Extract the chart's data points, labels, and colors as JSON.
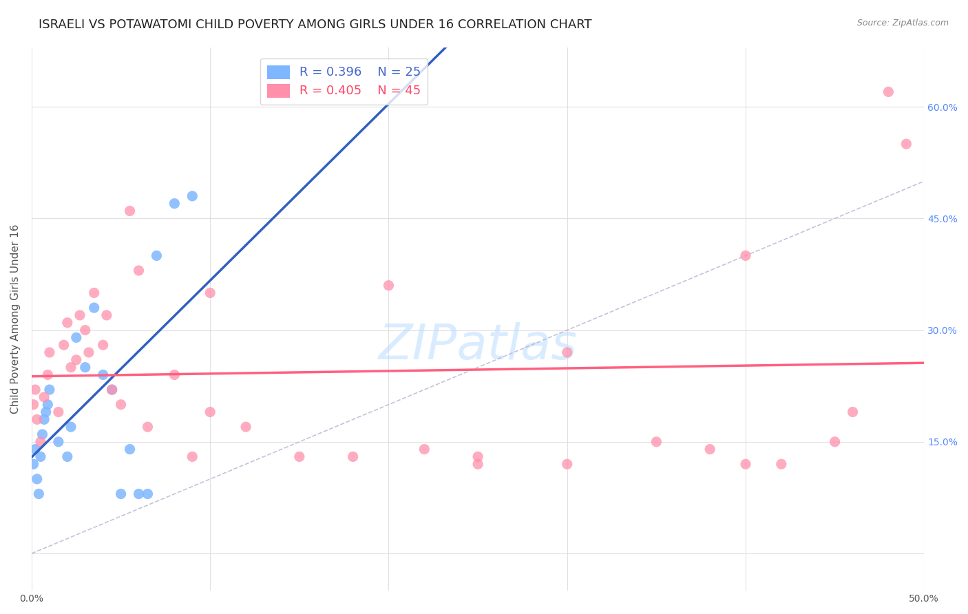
{
  "title": "ISRAELI VS POTAWATOMI CHILD POVERTY AMONG GIRLS UNDER 16 CORRELATION CHART",
  "source": "Source: ZipAtlas.com",
  "ylabel": "Child Poverty Among Girls Under 16",
  "xlabel": "",
  "watermark": "ZIPatlas",
  "xmin": 0.0,
  "xmax": 0.5,
  "ymin": -0.05,
  "ymax": 0.68,
  "xticks": [
    0.0,
    0.1,
    0.2,
    0.3,
    0.4,
    0.5
  ],
  "xtick_labels": [
    "0.0%",
    "",
    "",
    "",
    "",
    "50.0%"
  ],
  "ytick_positions": [
    0.0,
    0.15,
    0.3,
    0.45,
    0.6
  ],
  "ytick_labels": [
    "",
    "15.0%",
    "30.0%",
    "45.0%",
    "60.0%"
  ],
  "israelis_color": "#7EB6FF",
  "potawatomi_color": "#FF8FAB",
  "israelis_line_color": "#3060C0",
  "potawatomi_line_color": "#FF6080",
  "legend_r_israelis": "R = 0.396",
  "legend_n_israelis": "N = 25",
  "legend_r_potawatomi": "R = 0.405",
  "legend_n_potawatomi": "N = 45",
  "israelis_x": [
    0.001,
    0.002,
    0.003,
    0.004,
    0.005,
    0.006,
    0.007,
    0.008,
    0.009,
    0.01,
    0.015,
    0.02,
    0.022,
    0.025,
    0.03,
    0.035,
    0.04,
    0.045,
    0.05,
    0.055,
    0.06,
    0.065,
    0.07,
    0.08,
    0.09
  ],
  "israelis_y": [
    0.12,
    0.14,
    0.1,
    0.08,
    0.13,
    0.16,
    0.18,
    0.19,
    0.2,
    0.22,
    0.15,
    0.13,
    0.17,
    0.29,
    0.25,
    0.33,
    0.24,
    0.22,
    0.08,
    0.14,
    0.08,
    0.08,
    0.4,
    0.47,
    0.48
  ],
  "potawatomi_x": [
    0.001,
    0.002,
    0.003,
    0.005,
    0.007,
    0.009,
    0.01,
    0.015,
    0.018,
    0.02,
    0.022,
    0.025,
    0.027,
    0.03,
    0.032,
    0.035,
    0.04,
    0.042,
    0.045,
    0.05,
    0.055,
    0.06,
    0.065,
    0.08,
    0.09,
    0.1,
    0.12,
    0.15,
    0.18,
    0.2,
    0.22,
    0.25,
    0.3,
    0.35,
    0.38,
    0.4,
    0.42,
    0.45,
    0.46,
    0.48,
    0.49,
    0.1,
    0.25,
    0.3,
    0.4
  ],
  "potawatomi_y": [
    0.2,
    0.22,
    0.18,
    0.15,
    0.21,
    0.24,
    0.27,
    0.19,
    0.28,
    0.31,
    0.25,
    0.26,
    0.32,
    0.3,
    0.27,
    0.35,
    0.28,
    0.32,
    0.22,
    0.2,
    0.46,
    0.38,
    0.17,
    0.24,
    0.13,
    0.19,
    0.17,
    0.13,
    0.13,
    0.36,
    0.14,
    0.13,
    0.27,
    0.15,
    0.14,
    0.12,
    0.12,
    0.15,
    0.19,
    0.62,
    0.55,
    0.35,
    0.12,
    0.12,
    0.4
  ],
  "background_color": "#FFFFFF",
  "grid_color": "#DDDDDD",
  "title_fontsize": 13,
  "axis_label_fontsize": 11,
  "tick_fontsize": 10,
  "legend_fontsize": 12
}
